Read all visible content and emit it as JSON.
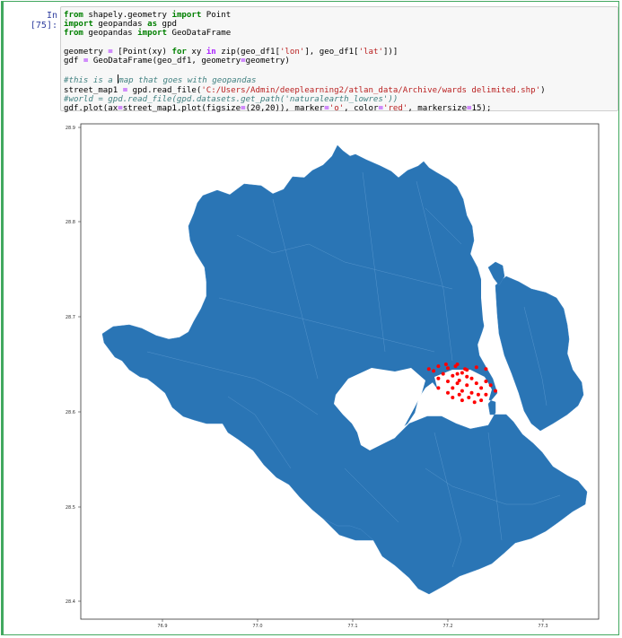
{
  "cell": {
    "prompt": "In [75]:",
    "code_lines": [
      "from shapely.geometry import Point",
      "import geopandas as gpd",
      "from geopandas import GeoDataFrame",
      "",
      "geometry = [Point(xy) for xy in zip(geo_df1['lon'], geo_df1['lat'])]",
      "gdf = GeoDataFrame(geo_df1, geometry=geometry)",
      "",
      "#this is a map that goes with geopandas",
      "street_map1 = gpd.read_file('C:/Users/Admin/deeplearning2/atlan_data/Archive/wards delimited.shp')",
      "#world = gpd.read_file(gpd.datasets.get_path('naturalearth_lowres'))",
      "gdf.plot(ax=street_map1.plot(figsize=(20,20)), marker='o', color='red', markersize=15);"
    ]
  },
  "plot": {
    "y_ticks": [
      "28.9",
      "28.8",
      "28.7",
      "28.6",
      "28.5",
      "28.4"
    ],
    "x_ticks": [
      "76.9",
      "77.0",
      "77.1",
      "77.2",
      "77.3"
    ],
    "colors": {
      "map_fill": "#2a75b5",
      "points": "#ff0000",
      "axes": "#333333"
    }
  },
  "chart_data": {
    "type": "scatter",
    "x_ticks": [
      76.9,
      77.0,
      77.1,
      77.2,
      77.3
    ],
    "y_ticks": [
      28.9,
      28.8,
      28.7,
      28.6,
      28.5,
      28.4
    ],
    "xlim": [
      76.84,
      77.35
    ],
    "ylim": [
      28.395,
      28.905
    ],
    "series": [
      {
        "marker": "o",
        "color": "red",
        "points": [
          [
            77.18,
            28.645
          ],
          [
            77.19,
            28.648
          ],
          [
            77.2,
            28.646
          ],
          [
            77.21,
            28.65
          ],
          [
            77.22,
            28.644
          ],
          [
            77.23,
            28.647
          ],
          [
            77.24,
            28.645
          ],
          [
            77.195,
            28.64
          ],
          [
            77.205,
            28.638
          ],
          [
            77.215,
            28.641
          ],
          [
            77.225,
            28.635
          ],
          [
            77.21,
            28.63
          ],
          [
            77.22,
            28.628
          ],
          [
            77.2,
            28.632
          ],
          [
            77.19,
            28.635
          ],
          [
            77.23,
            28.63
          ],
          [
            77.215,
            28.622
          ],
          [
            77.205,
            28.625
          ],
          [
            77.225,
            28.62
          ],
          [
            77.235,
            28.625
          ],
          [
            77.24,
            28.632
          ],
          [
            77.245,
            28.628
          ],
          [
            77.212,
            28.618
          ],
          [
            77.222,
            28.615
          ],
          [
            77.232,
            28.618
          ],
          [
            77.218,
            28.645
          ],
          [
            77.208,
            28.648
          ],
          [
            77.198,
            28.65
          ],
          [
            77.185,
            28.643
          ],
          [
            77.21,
            28.64
          ],
          [
            77.2,
            28.62
          ],
          [
            77.19,
            28.625
          ],
          [
            77.24,
            28.618
          ],
          [
            77.25,
            28.622
          ],
          [
            77.228,
            28.61
          ],
          [
            77.215,
            28.612
          ],
          [
            77.205,
            28.615
          ],
          [
            77.235,
            28.612
          ],
          [
            77.22,
            28.637
          ],
          [
            77.212,
            28.633
          ]
        ]
      }
    ]
  }
}
